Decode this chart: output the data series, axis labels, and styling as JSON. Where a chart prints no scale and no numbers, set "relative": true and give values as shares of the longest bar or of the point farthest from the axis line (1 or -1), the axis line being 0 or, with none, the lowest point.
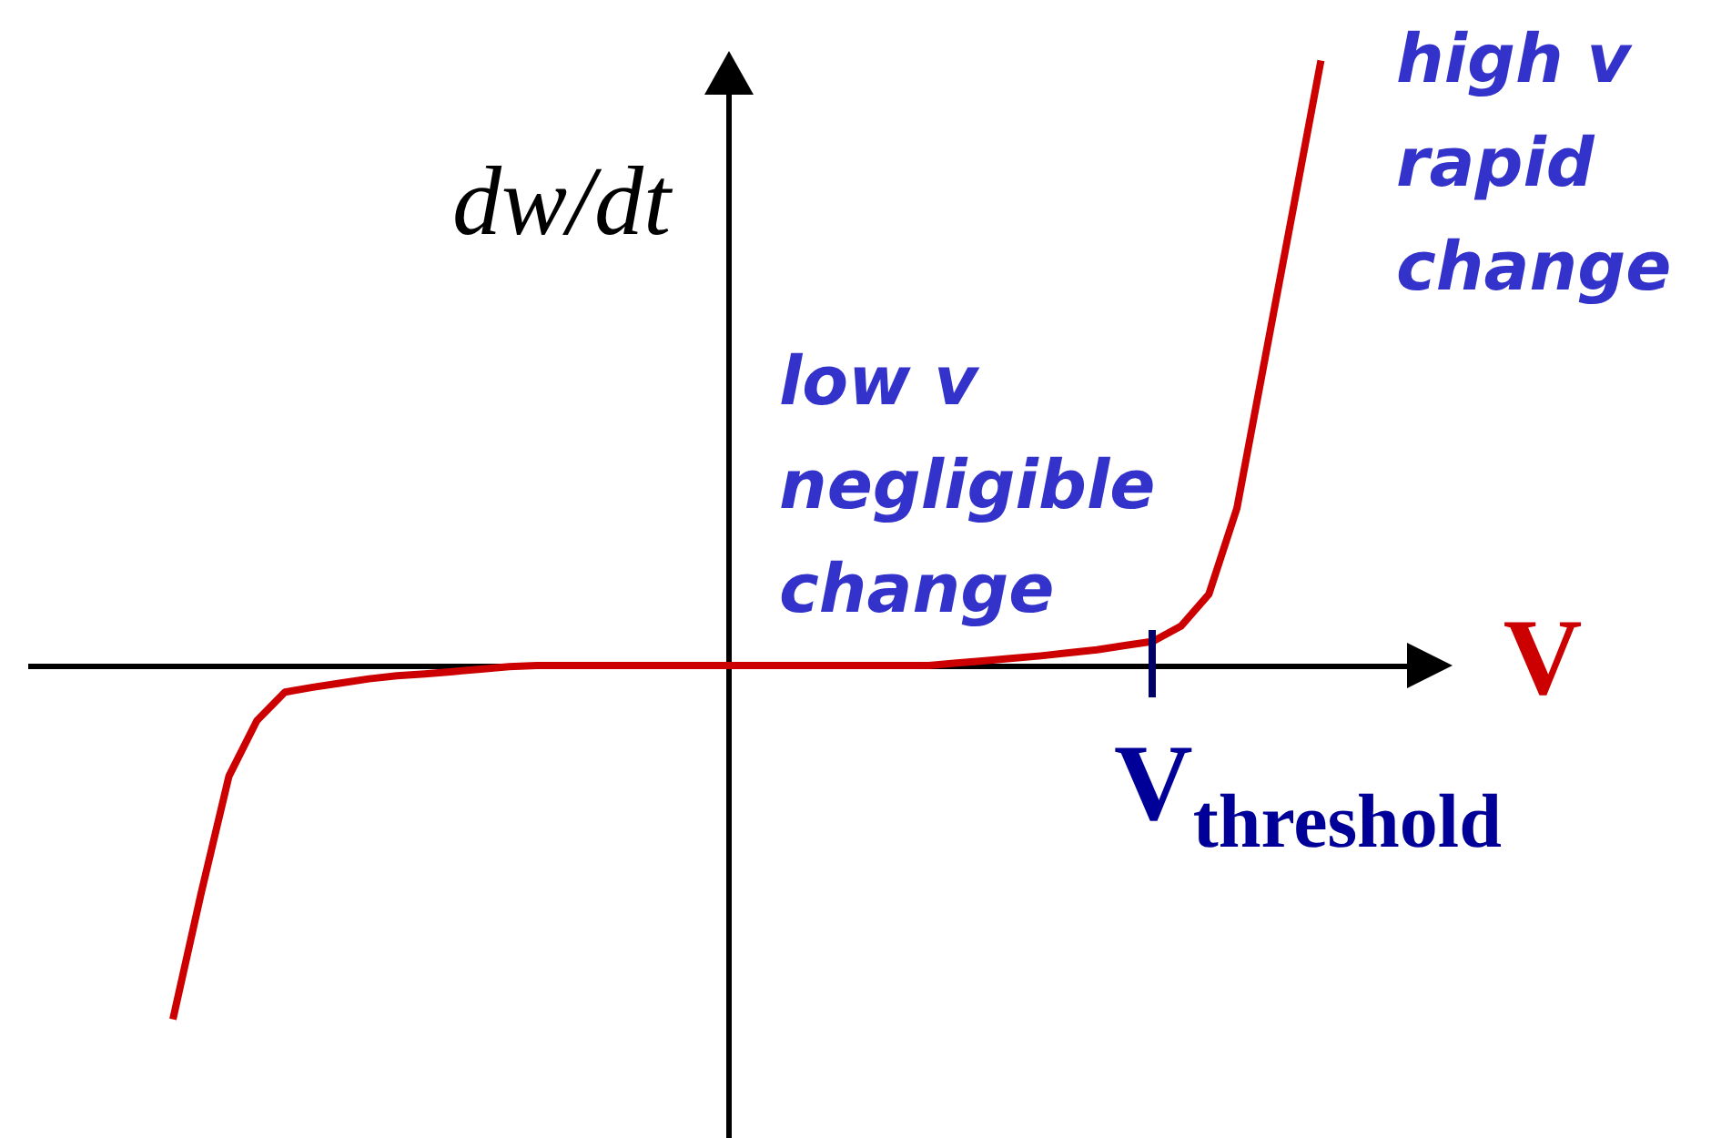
{
  "chart_data": {
    "type": "line",
    "relative": true,
    "xlabel": "V",
    "ylabel": "dw/dt",
    "categories": [
      null,
      null,
      null,
      null,
      null,
      null,
      null,
      null,
      null,
      null,
      null,
      null,
      null,
      null,
      null,
      null,
      null,
      null,
      null,
      null,
      null,
      null,
      null,
      null,
      null,
      null,
      null,
      null,
      null,
      null,
      null,
      null,
      null,
      null,
      null,
      null,
      null,
      null,
      null,
      null,
      null,
      null
    ],
    "series": [
      {
        "color": "#cc0000",
        "values": [
          -0.585,
          -0.378,
          -0.183,
          -0.091,
          -0.044,
          -0.036,
          -0.029,
          -0.022,
          -0.017,
          -0.014,
          -0.01,
          -0.006,
          -0.002,
          0,
          0,
          0,
          0,
          0,
          0,
          0,
          0,
          0,
          0,
          0,
          0,
          0,
          0,
          0,
          0.004,
          0.008,
          0.012,
          0.016,
          0.021,
          0.026,
          0.033,
          0.04,
          0.065,
          0.118,
          0.26,
          0.507,
          0.753,
          1
        ]
      }
    ],
    "annotations": [
      "low v negligible change",
      "high v rapid change",
      "V$_{threshold}$"
    ]
  }
}
